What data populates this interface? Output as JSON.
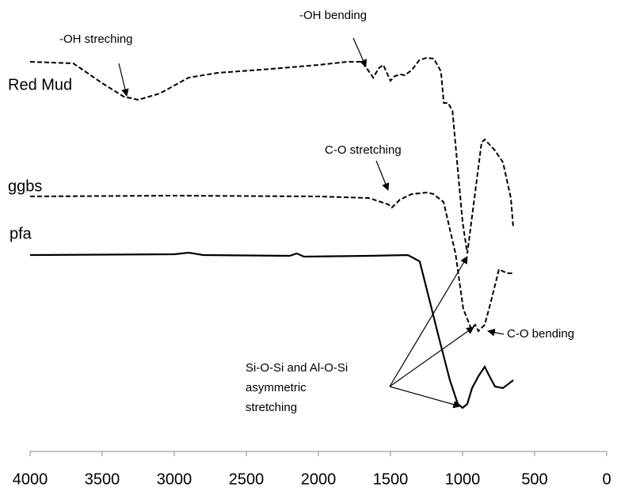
{
  "chart_data": {
    "type": "line",
    "xlim": [
      4000,
      0
    ],
    "xticks": [
      4000,
      3500,
      3000,
      2500,
      2000,
      1500,
      1000,
      500,
      0
    ],
    "ylim": [
      0,
      600
    ],
    "series": [
      {
        "name": "Red Mud",
        "color": "#000000",
        "dashed": true,
        "x": [
          4000,
          3700,
          3500,
          3350,
          3250,
          3100,
          2900,
          2700,
          2400,
          2000,
          1800,
          1700,
          1650,
          1620,
          1580,
          1550,
          1500,
          1470,
          1430,
          1400,
          1350,
          1300,
          1250,
          1200,
          1150,
          1130,
          1100,
          1070,
          1040,
          1000,
          967,
          868,
          846,
          775,
          720,
          665,
          648
        ],
        "values": [
          522,
          520,
          495,
          478,
          474,
          482,
          502,
          508,
          512,
          518,
          522,
          522,
          510,
          502,
          514,
          518,
          498,
          504,
          506,
          505,
          512,
          524,
          527,
          526,
          510,
          470,
          470,
          460,
          400,
          320,
          280,
          420,
          424,
          410,
          395,
          350,
          312
        ]
      },
      {
        "name": "ggbs",
        "color": "#000000",
        "dashed": true,
        "x": [
          4000,
          3000,
          2000,
          1650,
          1516,
          1490,
          1434,
          1352,
          1242,
          1203,
          1132,
          1049,
          995,
          940,
          912,
          890,
          846,
          802,
          747,
          692,
          648
        ],
        "values": [
          352,
          353,
          352,
          350,
          342,
          338,
          348,
          355,
          357,
          355,
          345,
          280,
          210,
          185,
          190,
          182,
          190,
          220,
          260,
          255,
          255
        ]
      },
      {
        "name": "pfa",
        "color": "#000000",
        "dashed": false,
        "x": [
          4000,
          3000,
          2900,
          2800,
          2200,
          2150,
          2100,
          1650,
          1379,
          1297,
          1242,
          1159,
          1088,
          1033,
          1000,
          967,
          934,
          890,
          846,
          813,
          775,
          720,
          648
        ],
        "values": [
          278,
          279,
          281,
          278,
          277,
          280,
          276,
          277,
          278,
          270,
          230,
          170,
          120,
          90,
          85,
          90,
          110,
          125,
          137,
          125,
          112,
          110,
          120
        ]
      }
    ],
    "annotations": [
      {
        "text": "-OH streching"
      },
      {
        "text": "-OH bending"
      },
      {
        "text": "C-O stretching"
      },
      {
        "text": "C-O bending"
      },
      {
        "lines": [
          "Si-O-Si and Al-O-Si",
          "asymmetric",
          "stretching"
        ]
      }
    ]
  }
}
